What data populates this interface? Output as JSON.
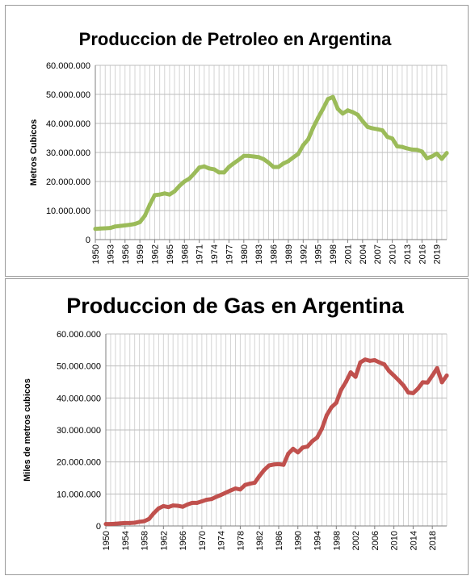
{
  "chart_data": [
    {
      "type": "line",
      "title": "Produccion de Petroleo en Argentina",
      "ylabel": "Metros Cubicos",
      "xlabel": "",
      "ylim": [
        0,
        60000000
      ],
      "y_ticks": [
        "0",
        "10.000.000",
        "20.000.000",
        "30.000.000",
        "40.000.000",
        "50.000.000",
        "60.000.000"
      ],
      "x_ticks": [
        "1950",
        "1953",
        "1956",
        "1959",
        "1962",
        "1965",
        "1968",
        "1971",
        "1974",
        "1977",
        "1980",
        "1983",
        "1986",
        "1989",
        "1992",
        "1995",
        "1998",
        "2001",
        "2004",
        "2007",
        "2010",
        "2013",
        "2016",
        "2019"
      ],
      "grid": true,
      "legend": "none",
      "color": "#9bbb59",
      "x": [
        1950,
        1951,
        1952,
        1953,
        1954,
        1955,
        1956,
        1957,
        1958,
        1959,
        1960,
        1961,
        1962,
        1963,
        1964,
        1965,
        1966,
        1967,
        1968,
        1969,
        1970,
        1971,
        1972,
        1973,
        1974,
        1975,
        1976,
        1977,
        1978,
        1979,
        1980,
        1981,
        1982,
        1983,
        1984,
        1985,
        1986,
        1987,
        1988,
        1989,
        1990,
        1991,
        1992,
        1993,
        1994,
        1995,
        1996,
        1997,
        1998,
        1999,
        2000,
        2001,
        2002,
        2003,
        2004,
        2005,
        2006,
        2007,
        2008,
        2009,
        2010,
        2011,
        2012,
        2013,
        2014,
        2015,
        2016,
        2017,
        2018,
        2019,
        2020,
        2021
      ],
      "values": [
        3700000,
        3800000,
        3900000,
        4000000,
        4500000,
        4700000,
        4900000,
        5100000,
        5400000,
        6000000,
        8200000,
        12000000,
        15300000,
        15500000,
        15900000,
        15500000,
        16600000,
        18500000,
        20000000,
        21000000,
        22800000,
        24800000,
        25200000,
        24500000,
        24200000,
        23100000,
        23100000,
        25000000,
        26300000,
        27500000,
        28800000,
        28800000,
        28600000,
        28400000,
        27700000,
        26500000,
        25000000,
        25000000,
        26200000,
        27000000,
        28300000,
        29500000,
        32500000,
        34500000,
        38500000,
        41900000,
        45000000,
        48400000,
        49100000,
        45000000,
        43400000,
        44500000,
        43900000,
        43000000,
        40800000,
        38800000,
        38300000,
        38000000,
        37600000,
        35400000,
        34800000,
        32100000,
        31900000,
        31400000,
        31000000,
        30900000,
        30300000,
        28000000,
        28600000,
        29600000,
        27800000,
        29800000
      ]
    },
    {
      "type": "line",
      "title": "Produccion de Gas en Argentina",
      "ylabel": "Miles de metros cubicos",
      "xlabel": "",
      "ylim": [
        0,
        60000000
      ],
      "y_ticks": [
        "0",
        "10.000.000",
        "20.000.000",
        "30.000.000",
        "40.000.000",
        "50.000.000",
        "60.000.000"
      ],
      "x_ticks": [
        "1950",
        "1954",
        "1958",
        "1962",
        "1966",
        "1970",
        "1974",
        "1978",
        "1982",
        "1986",
        "1990",
        "1994",
        "1998",
        "2002",
        "2006",
        "2010",
        "2014",
        "2018"
      ],
      "grid": true,
      "legend": "none",
      "color": "#c0504d",
      "x": [
        1950,
        1951,
        1952,
        1953,
        1954,
        1955,
        1956,
        1957,
        1958,
        1959,
        1960,
        1961,
        1962,
        1963,
        1964,
        1965,
        1966,
        1967,
        1968,
        1969,
        1970,
        1971,
        1972,
        1973,
        1974,
        1975,
        1976,
        1977,
        1978,
        1979,
        1980,
        1981,
        1982,
        1983,
        1984,
        1985,
        1986,
        1987,
        1988,
        1989,
        1990,
        1991,
        1992,
        1993,
        1994,
        1995,
        1996,
        1997,
        1998,
        1999,
        2000,
        2001,
        2002,
        2003,
        2004,
        2005,
        2006,
        2007,
        2008,
        2009,
        2010,
        2011,
        2012,
        2013,
        2014,
        2015,
        2016,
        2017,
        2018,
        2019,
        2020,
        2021
      ],
      "values": [
        600000,
        600000,
        700000,
        800000,
        900000,
        900000,
        1000000,
        1300000,
        1500000,
        2200000,
        4000000,
        5500000,
        6200000,
        5900000,
        6400000,
        6300000,
        6000000,
        6700000,
        7200000,
        7200000,
        7700000,
        8200000,
        8400000,
        9100000,
        9700000,
        10400000,
        11100000,
        11700000,
        11400000,
        12800000,
        13200000,
        13500000,
        15600000,
        17500000,
        18900000,
        19200000,
        19300000,
        19100000,
        22600000,
        24100000,
        23000000,
        24500000,
        24800000,
        26500000,
        27600000,
        30400000,
        34600000,
        37100000,
        38500000,
        42500000,
        45000000,
        48000000,
        46600000,
        51100000,
        52000000,
        51600000,
        51800000,
        51100000,
        50500000,
        48400000,
        47000000,
        45500000,
        43900000,
        41700000,
        41500000,
        42900000,
        44900000,
        44800000,
        47000000,
        49300000,
        44900000,
        47000000
      ]
    }
  ]
}
